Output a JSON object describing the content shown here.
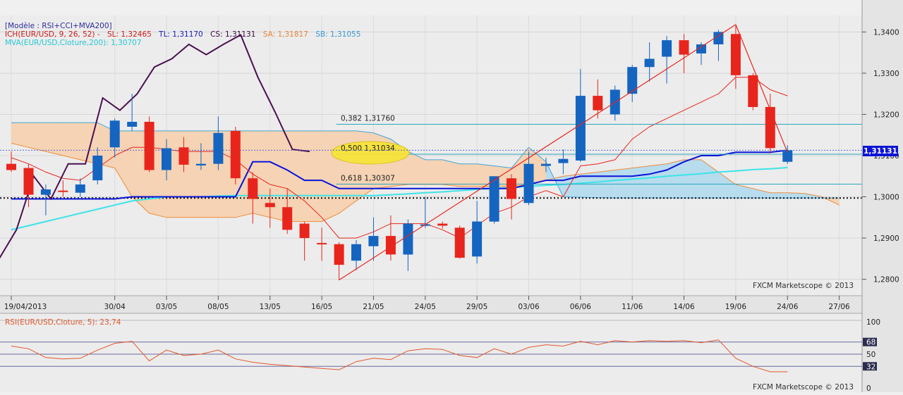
{
  "header": {
    "model": "[Modèle : RSI+CCI+MVA200]",
    "ich_prefix": "ICH(EUR/USD, 9, 26, 52) -",
    "ich_sl": "SL: 1,32465",
    "ich_tl": "TL: 1,31170",
    "ich_cs": "CS: 1,31131",
    "ich_sa": "SA: 1,31817",
    "ich_sb": "SB: 1,31055",
    "mva": "MVA(EUR/USD,Cloture,200): 1,30707"
  },
  "watermark": "FXCM Marketscope © 2013",
  "price_tag": "1,31131",
  "x_labels": [
    "19/04/2013",
    "30/04",
    "03/05",
    "08/05",
    "13/05",
    "16/05",
    "21/05",
    "24/05",
    "29/05",
    "03/06",
    "06/06",
    "11/06",
    "14/06",
    "19/06",
    "24/06",
    "27/06"
  ],
  "price_axis_labels": [
    "1,3400",
    "1,3300",
    "1,3200",
    "1,3100",
    "1,3000",
    "1,2900",
    "1,2800"
  ],
  "fib_labels": [
    "0,382 1,31760",
    "0,500 1,31034",
    "0,618 1,30307"
  ],
  "rsi": {
    "title": "RSI(EUR/USD,Cloture, 5): 23,74",
    "axis_labels": [
      "100",
      "68",
      "50",
      "32",
      "0"
    ]
  },
  "colors": {
    "bull": "#1565c0",
    "bear": "#e8251c",
    "tenkan": "#e8251c",
    "kijun": "#0a14d8",
    "mva": "#3ce4e8",
    "cci": "#4a1050",
    "cloud_bear": "#f5d3b4",
    "cloud_bull": "#b7dcee",
    "senkou_a": "#f08c3a",
    "senkou_b": "#42a6d6",
    "rsi_line": "#e2582c"
  },
  "chart_data": [
    {
      "type": "candlestick",
      "title": "[Modèle : RSI+CCI+MVA200]",
      "ylim": [
        1.276,
        1.344
      ],
      "grid": true,
      "candles": [
        {
          "o": 1.308,
          "h": 1.311,
          "l": 1.306,
          "c": 1.3065
        },
        {
          "o": 1.307,
          "h": 1.308,
          "l": 1.2975,
          "c": 1.3005
        },
        {
          "o": 1.3005,
          "h": 1.303,
          "l": 1.2955,
          "c": 1.3018
        },
        {
          "o": 1.3015,
          "h": 1.304,
          "l": 1.3,
          "c": 1.3012
        },
        {
          "o": 1.301,
          "h": 1.3045,
          "l": 1.3,
          "c": 1.303
        },
        {
          "o": 1.304,
          "h": 1.312,
          "l": 1.303,
          "c": 1.31
        },
        {
          "o": 1.312,
          "h": 1.319,
          "l": 1.3095,
          "c": 1.3185
        },
        {
          "o": 1.317,
          "h": 1.325,
          "l": 1.316,
          "c": 1.3182
        },
        {
          "o": 1.3182,
          "h": 1.3195,
          "l": 1.306,
          "c": 1.3065
        },
        {
          "o": 1.3065,
          "h": 1.314,
          "l": 1.304,
          "c": 1.3118
        },
        {
          "o": 1.312,
          "h": 1.3145,
          "l": 1.306,
          "c": 1.3078
        },
        {
          "o": 1.3076,
          "h": 1.313,
          "l": 1.3065,
          "c": 1.308
        },
        {
          "o": 1.308,
          "h": 1.3195,
          "l": 1.3065,
          "c": 1.3155
        },
        {
          "o": 1.316,
          "h": 1.317,
          "l": 1.303,
          "c": 1.3045
        },
        {
          "o": 1.3045,
          "h": 1.306,
          "l": 1.2935,
          "c": 1.2995
        },
        {
          "o": 1.2985,
          "h": 1.302,
          "l": 1.2925,
          "c": 1.2975
        },
        {
          "o": 1.2975,
          "h": 1.302,
          "l": 1.291,
          "c": 1.292
        },
        {
          "o": 1.2935,
          "h": 1.294,
          "l": 1.2845,
          "c": 1.29
        },
        {
          "o": 1.2888,
          "h": 1.2925,
          "l": 1.2845,
          "c": 1.2887
        },
        {
          "o": 1.2885,
          "h": 1.289,
          "l": 1.2798,
          "c": 1.2835
        },
        {
          "o": 1.2845,
          "h": 1.2895,
          "l": 1.2822,
          "c": 1.2885
        },
        {
          "o": 1.288,
          "h": 1.295,
          "l": 1.2845,
          "c": 1.2905
        },
        {
          "o": 1.2905,
          "h": 1.2955,
          "l": 1.2845,
          "c": 1.286
        },
        {
          "o": 1.286,
          "h": 1.2945,
          "l": 1.282,
          "c": 1.2935
        },
        {
          "o": 1.2933,
          "h": 1.3,
          "l": 1.2925,
          "c": 1.2933
        },
        {
          "o": 1.2935,
          "h": 1.294,
          "l": 1.2923,
          "c": 1.293
        },
        {
          "o": 1.2925,
          "h": 1.293,
          "l": 1.285,
          "c": 1.2852
        },
        {
          "o": 1.2855,
          "h": 1.299,
          "l": 1.2838,
          "c": 1.294
        },
        {
          "o": 1.294,
          "h": 1.305,
          "l": 1.2935,
          "c": 1.305
        },
        {
          "o": 1.3045,
          "h": 1.3055,
          "l": 1.2945,
          "c": 1.2995
        },
        {
          "o": 1.2985,
          "h": 1.311,
          "l": 1.298,
          "c": 1.308
        },
        {
          "o": 1.3075,
          "h": 1.3095,
          "l": 1.306,
          "c": 1.308
        },
        {
          "o": 1.3082,
          "h": 1.3115,
          "l": 1.3055,
          "c": 1.3092
        },
        {
          "o": 1.3088,
          "h": 1.331,
          "l": 1.3085,
          "c": 1.3245
        },
        {
          "o": 1.3245,
          "h": 1.3285,
          "l": 1.319,
          "c": 1.321
        },
        {
          "o": 1.32,
          "h": 1.327,
          "l": 1.3185,
          "c": 1.326
        },
        {
          "o": 1.325,
          "h": 1.332,
          "l": 1.323,
          "c": 1.3315
        },
        {
          "o": 1.3315,
          "h": 1.3375,
          "l": 1.328,
          "c": 1.3335
        },
        {
          "o": 1.334,
          "h": 1.339,
          "l": 1.3275,
          "c": 1.338
        },
        {
          "o": 1.338,
          "h": 1.3395,
          "l": 1.33,
          "c": 1.3345
        },
        {
          "o": 1.3348,
          "h": 1.3375,
          "l": 1.332,
          "c": 1.337
        },
        {
          "o": 1.337,
          "h": 1.3405,
          "l": 1.333,
          "c": 1.34
        },
        {
          "o": 1.3395,
          "h": 1.3415,
          "l": 1.3262,
          "c": 1.3295
        },
        {
          "o": 1.3295,
          "h": 1.33,
          "l": 1.321,
          "c": 1.3218
        },
        {
          "o": 1.3218,
          "h": 1.325,
          "l": 1.3105,
          "c": 1.3118
        },
        {
          "o": 1.3085,
          "h": 1.3125,
          "l": 1.308,
          "c": 1.3113
        }
      ],
      "tenkan": [
        1.3095,
        1.308,
        1.306,
        1.3045,
        1.304,
        1.307,
        1.31,
        1.312,
        1.312,
        1.3115,
        1.311,
        1.311,
        1.311,
        1.309,
        1.3055,
        1.303,
        1.302,
        1.299,
        1.295,
        1.29,
        1.29,
        1.2915,
        1.2935,
        1.2935,
        1.2935,
        1.292,
        1.29,
        1.293,
        1.296,
        1.2975,
        1.3,
        1.3015,
        1.3,
        1.3075,
        1.308,
        1.309,
        1.314,
        1.317,
        1.319,
        1.321,
        1.323,
        1.325,
        1.329,
        1.329,
        1.326,
        1.3245
      ],
      "kijun": [
        1.2995,
        1.2995,
        1.2995,
        1.2995,
        1.2995,
        1.2995,
        1.2995,
        1.3,
        1.3,
        1.3,
        1.3,
        1.3,
        1.3,
        1.3,
        1.3085,
        1.3085,
        1.3065,
        1.304,
        1.304,
        1.302,
        1.302,
        1.302,
        1.302,
        1.302,
        1.302,
        1.302,
        1.302,
        1.302,
        1.302,
        1.302,
        1.303,
        1.304,
        1.304,
        1.305,
        1.305,
        1.305,
        1.305,
        1.3055,
        1.3065,
        1.3085,
        1.31,
        1.31,
        1.3108,
        1.3108,
        1.3108,
        1.3113
      ],
      "chikou": [
        1.285,
        1.296,
        1.3055,
        1.2995,
        1.308,
        1.308,
        1.311,
        1.3245,
        1.321,
        1.326,
        1.3315,
        1.3335,
        1.337,
        1.3345,
        1.337,
        1.3392,
        1.3295,
        1.3218,
        1.3118,
        1.3113
      ],
      "mva200": [
        1.292,
        1.293,
        1.294,
        1.295,
        1.296,
        1.297,
        1.298,
        1.299,
        1.2995,
        1.3,
        1.3,
        1.3,
        1.3002,
        1.3003,
        1.3003,
        1.3003,
        1.3003,
        1.3003,
        1.3003,
        1.3003,
        1.3003,
        1.3003,
        1.3005,
        1.3007,
        1.301,
        1.3012,
        1.3015,
        1.3018,
        1.302,
        1.3023,
        1.3025,
        1.3028,
        1.303,
        1.3033,
        1.3036,
        1.304,
        1.3043,
        1.3046,
        1.305,
        1.3053,
        1.3056,
        1.306,
        1.3063,
        1.3066,
        1.3068,
        1.3071
      ],
      "senkou_a": [
        1.313,
        1.312,
        1.311,
        1.31,
        1.309,
        1.308,
        1.307,
        1.3,
        1.296,
        1.295,
        1.295,
        1.295,
        1.295,
        1.295,
        1.296,
        1.295,
        1.294,
        1.294,
        1.294,
        1.296,
        1.299,
        1.302,
        1.3025,
        1.303,
        1.303,
        1.303,
        1.3025,
        1.3025,
        1.3025,
        1.3025,
        1.303,
        1.304,
        1.305,
        1.3055,
        1.306,
        1.3065,
        1.307,
        1.3075,
        1.308,
        1.309,
        1.309,
        1.306,
        1.303,
        1.302,
        1.301,
        1.301,
        1.3008,
        1.3,
        1.298
      ],
      "senkou_b": [
        1.318,
        1.318,
        1.318,
        1.318,
        1.318,
        1.318,
        1.316,
        1.316,
        1.316,
        1.316,
        1.316,
        1.316,
        1.316,
        1.316,
        1.316,
        1.316,
        1.316,
        1.316,
        1.316,
        1.316,
        1.316,
        1.3155,
        1.314,
        1.311,
        1.309,
        1.309,
        1.308,
        1.308,
        1.3075,
        1.307,
        1.312,
        1.3085,
        1.3,
        1.2999,
        1.2998,
        1.2997,
        1.2997,
        1.2997,
        1.2997,
        1.2997,
        1.2997,
        1.2997,
        1.2997,
        1.2997,
        1.2997,
        1.2997,
        1.2997,
        1.2997,
        1.2997
      ],
      "cci_overlay": [
        1.285,
        1.292,
        1.305,
        1.2995,
        1.308,
        1.308,
        1.324,
        1.321,
        1.325,
        1.3315,
        1.3335,
        1.337,
        1.3345,
        1.337,
        1.3393,
        1.329,
        1.3205,
        1.3115,
        1.311
      ],
      "fib_levels": [
        {
          "label": "0,382",
          "value": 1.3176
        },
        {
          "label": "0,500",
          "value": 1.31034
        },
        {
          "label": "0,618",
          "value": 1.30307
        }
      ],
      "dotted_level": 1.2997,
      "trendlines": [
        {
          "from_index": 19,
          "from_value": 1.2798,
          "to_index": 42,
          "to_value": 1.3418
        },
        {
          "from_index": 42,
          "from_value": 1.3418,
          "to_index": 45,
          "to_value": 1.3108
        }
      ]
    },
    {
      "type": "line",
      "title": "RSI(EUR/USD,Cloture, 5): 23,74",
      "ylim": [
        0,
        100
      ],
      "ylines": [
        68,
        50,
        32
      ],
      "series": [
        {
          "name": "RSI(EUR/USD,Cloture, 5): 23,74",
          "values": [
            62,
            58,
            45,
            43,
            44,
            56,
            66,
            69,
            40,
            56,
            48,
            50,
            56,
            43,
            38,
            35,
            33,
            31,
            29,
            27,
            39,
            44,
            42,
            55,
            58,
            57,
            48,
            45,
            58,
            50,
            60,
            64,
            62,
            69,
            64,
            70,
            68,
            70,
            69,
            70,
            67,
            71,
            44,
            32,
            24,
            24
          ]
        }
      ]
    }
  ]
}
